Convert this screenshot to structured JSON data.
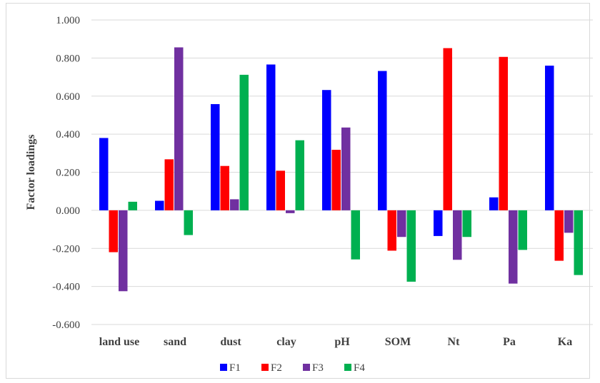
{
  "chart_data": {
    "type": "bar",
    "title": "",
    "xlabel": "",
    "ylabel": "Factor loadings",
    "ylim": [
      -0.6,
      1.0
    ],
    "ytick_step": 0.2,
    "ytick_labels": [
      "-0.600",
      "-0.400",
      "-0.200",
      "0.000",
      "0.200",
      "0.400",
      "0.600",
      "0.800",
      "1.000"
    ],
    "grid": "horizontal",
    "legend_position": "bottom",
    "categories": [
      "land use",
      "sand",
      "dust",
      "clay",
      "pH",
      "SOM",
      "Nt",
      "Pa",
      "Ka"
    ],
    "series": [
      {
        "name": "F1",
        "color": "#0000ff",
        "values": [
          0.38,
          0.05,
          0.558,
          0.766,
          0.632,
          0.732,
          -0.135,
          0.068,
          0.76
        ]
      },
      {
        "name": "F2",
        "color": "#ff0000",
        "values": [
          -0.22,
          0.268,
          0.233,
          0.208,
          0.318,
          -0.212,
          0.852,
          0.806,
          -0.265
        ]
      },
      {
        "name": "F3",
        "color": "#7030a0",
        "values": [
          -0.425,
          0.856,
          0.058,
          -0.015,
          0.435,
          -0.14,
          -0.26,
          -0.385,
          -0.118
        ]
      },
      {
        "name": "F4",
        "color": "#00b050",
        "values": [
          0.045,
          -0.13,
          0.712,
          0.368,
          -0.258,
          -0.375,
          -0.14,
          -0.208,
          -0.34
        ]
      }
    ]
  }
}
